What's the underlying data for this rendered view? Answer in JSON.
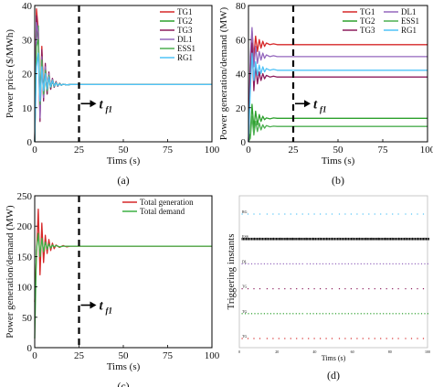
{
  "colors": {
    "TG1": "#d62728",
    "TG2": "#2ca02c",
    "TG3": "#8c1c5c",
    "DL1": "#9467bd",
    "ESS1": "#4caf50",
    "RG1": "#4fc3f7",
    "total_generation": "#d62728",
    "total_demand": "#3cb043",
    "dashed_line": "#000000",
    "events_black": "#111111"
  },
  "chart_data": [
    {
      "id": "a",
      "type": "line",
      "panel_label": "(a)",
      "xlabel": "Tims (s)",
      "ylabel": "Power price ($/MWh)",
      "xlim": [
        0,
        100
      ],
      "ylim": [
        0,
        40
      ],
      "xticks": [
        "0",
        "25",
        "50",
        "75",
        "100"
      ],
      "yticks": [
        "0",
        "10",
        "20",
        "30",
        "40"
      ],
      "marker_x": 25,
      "marker_label": "t",
      "marker_sub": "f1",
      "legend_position": "top-right",
      "series": [
        {
          "name": "TG1",
          "color_key": "TG1",
          "x": [
            0,
            1,
            2,
            3,
            4,
            5,
            6,
            7,
            8,
            9,
            10,
            11,
            12,
            13,
            14,
            15,
            16,
            18,
            20,
            25,
            30,
            40,
            60,
            80,
            100
          ],
          "y": [
            0,
            39,
            33,
            8,
            28,
            14,
            22,
            15,
            20,
            16,
            18.5,
            16.2,
            17.6,
            16.4,
            17.1,
            16.6,
            16.9,
            16.7,
            16.8,
            16.8,
            16.8,
            16.8,
            16.8,
            16.8,
            16.8
          ]
        },
        {
          "name": "TG2",
          "color_key": "TG2",
          "x": [
            0,
            1,
            2,
            3,
            4,
            5,
            6,
            7,
            8,
            9,
            10,
            11,
            12,
            13,
            14,
            15,
            16,
            18,
            20,
            25,
            30,
            40,
            60,
            80,
            100
          ],
          "y": [
            0,
            30,
            34,
            10,
            26,
            13,
            21,
            14,
            19.5,
            15.5,
            18.2,
            16,
            17.5,
            16.3,
            17.1,
            16.6,
            16.9,
            16.7,
            16.8,
            16.8,
            16.8,
            16.8,
            16.8,
            16.8,
            16.8
          ]
        },
        {
          "name": "TG3",
          "color_key": "TG3",
          "x": [
            0,
            1,
            2,
            3,
            4,
            5,
            6,
            7,
            8,
            9,
            10,
            11,
            12,
            13,
            14,
            15,
            16,
            18,
            20,
            25,
            30,
            40,
            60,
            80,
            100
          ],
          "y": [
            0,
            37,
            31,
            6,
            27,
            12,
            23,
            14,
            20.5,
            15.4,
            18.6,
            16,
            17.7,
            16.3,
            17.2,
            16.6,
            16.9,
            16.7,
            16.8,
            16.8,
            16.8,
            16.8,
            16.8,
            16.8,
            16.8
          ]
        },
        {
          "name": "DL1",
          "color_key": "DL1",
          "x": [
            0,
            1,
            2,
            3,
            4,
            5,
            6,
            7,
            8,
            9,
            10,
            11,
            12,
            13,
            14,
            15,
            16,
            18,
            20,
            25,
            30,
            40,
            60,
            80,
            100
          ],
          "y": [
            0,
            35,
            32,
            7,
            25,
            13,
            22,
            15,
            20,
            16,
            18.3,
            16.2,
            17.5,
            16.4,
            17.1,
            16.6,
            16.9,
            16.7,
            16.8,
            16.8,
            16.8,
            16.8,
            16.8,
            16.8,
            16.8
          ]
        },
        {
          "name": "ESS1",
          "color_key": "ESS1",
          "x": [
            0,
            1,
            2,
            3,
            4,
            5,
            6,
            7,
            8,
            9,
            10,
            11,
            12,
            13,
            14,
            15,
            16,
            18,
            20,
            25,
            30,
            40,
            60,
            80,
            100
          ],
          "y": [
            0,
            28,
            30,
            11,
            24,
            14,
            21,
            15,
            19.5,
            16,
            18.1,
            16.3,
            17.4,
            16.5,
            17.1,
            16.6,
            16.9,
            16.7,
            16.8,
            16.8,
            16.8,
            16.8,
            16.8,
            16.8,
            16.8
          ]
        },
        {
          "name": "RG1",
          "color_key": "RG1",
          "x": [
            0,
            1,
            2,
            3,
            4,
            5,
            6,
            7,
            8,
            9,
            10,
            11,
            12,
            13,
            14,
            15,
            16,
            18,
            20,
            25,
            30,
            40,
            60,
            80,
            100
          ],
          "y": [
            0,
            22,
            26,
            12,
            22,
            15,
            20,
            15.5,
            19,
            16.2,
            18,
            16.4,
            17.3,
            16.5,
            17,
            16.6,
            16.9,
            16.7,
            16.8,
            16.8,
            16.8,
            16.8,
            16.8,
            16.8,
            16.8
          ]
        }
      ]
    },
    {
      "id": "b",
      "type": "line",
      "panel_label": "(b)",
      "xlabel": "Tims (s)",
      "ylabel": "Power generation/demand (MW)",
      "xlim": [
        0,
        100
      ],
      "ylim": [
        0,
        80
      ],
      "xticks": [
        "0",
        "25",
        "50",
        "75",
        "100"
      ],
      "yticks": [
        "0",
        "20",
        "40",
        "60",
        "80"
      ],
      "marker_x": 25,
      "marker_label": "t",
      "marker_sub": "f1",
      "legend_position": "top-right",
      "legend_columns": 2,
      "series": [
        {
          "name": "TG1",
          "color_key": "TG1",
          "x": [
            0,
            1,
            2,
            3,
            4,
            5,
            6,
            7,
            8,
            9,
            10,
            12,
            14,
            16,
            20,
            25,
            30,
            40,
            60,
            80,
            100
          ],
          "y": [
            0,
            45,
            65,
            50,
            62,
            53,
            60,
            55,
            59,
            56,
            58,
            57,
            57.5,
            57,
            57,
            57,
            57,
            57,
            57,
            57,
            57
          ]
        },
        {
          "name": "DL1",
          "color_key": "DL1",
          "x": [
            0,
            1,
            2,
            3,
            4,
            5,
            6,
            7,
            8,
            9,
            10,
            12,
            14,
            16,
            20,
            25,
            30,
            40,
            60,
            80,
            100
          ],
          "y": [
            0,
            50,
            67,
            44,
            56,
            46,
            53,
            48,
            52,
            49,
            51,
            50,
            50.5,
            50,
            50,
            50,
            50,
            50,
            50,
            50,
            50
          ]
        },
        {
          "name": "TG2",
          "color_key": "TG2",
          "x": [
            0,
            1,
            2,
            3,
            4,
            5,
            6,
            7,
            8,
            9,
            10,
            12,
            14,
            16,
            20,
            25,
            30,
            40,
            60,
            80,
            100
          ],
          "y": [
            0,
            5,
            22,
            8,
            18,
            10,
            16,
            12,
            15,
            13,
            14,
            13.5,
            14,
            13.8,
            13.8,
            13.8,
            13.8,
            13.8,
            13.8,
            13.8,
            13.8
          ]
        },
        {
          "name": "ESS1",
          "color_key": "ESS1",
          "x": [
            0,
            1,
            2,
            3,
            4,
            5,
            6,
            7,
            8,
            9,
            10,
            12,
            14,
            16,
            20,
            25,
            30,
            40,
            60,
            80,
            100
          ],
          "y": [
            0,
            2,
            15,
            4,
            12,
            6,
            11,
            7,
            10,
            8,
            9.5,
            8.8,
            9.2,
            9,
            9,
            9,
            9,
            9,
            9,
            9,
            9
          ]
        },
        {
          "name": "TG3",
          "color_key": "TG3",
          "x": [
            0,
            1,
            2,
            3,
            4,
            5,
            6,
            7,
            8,
            9,
            10,
            12,
            14,
            16,
            20,
            25,
            30,
            40,
            60,
            80,
            100
          ],
          "y": [
            0,
            40,
            58,
            30,
            45,
            34,
            41,
            36,
            40,
            37,
            39,
            38,
            38.5,
            38,
            38,
            38,
            38,
            38,
            38,
            38,
            38
          ]
        },
        {
          "name": "RG1",
          "color_key": "RG1",
          "x": [
            0,
            1,
            2,
            3,
            4,
            5,
            6,
            7,
            8,
            9,
            10,
            12,
            14,
            16,
            20,
            25,
            30,
            40,
            60,
            80,
            100
          ],
          "y": [
            0,
            30,
            52,
            36,
            47,
            39,
            45,
            40,
            44,
            41,
            43,
            42,
            42.5,
            42,
            42,
            42,
            42,
            42,
            42,
            42,
            42
          ]
        }
      ]
    },
    {
      "id": "c",
      "type": "line",
      "panel_label": "(c)",
      "xlabel": "Tims (s)",
      "ylabel": "Power generation/demand (MW)",
      "xlim": [
        0,
        100
      ],
      "ylim": [
        0,
        250
      ],
      "xticks": [
        "0",
        "25",
        "50",
        "75",
        "100"
      ],
      "yticks": [
        "0",
        "50",
        "100",
        "150",
        "200",
        "250"
      ],
      "marker_x": 25,
      "marker_label": "t",
      "marker_sub": "f1",
      "legend_position": "top-right",
      "series": [
        {
          "name": "Total generation",
          "color_key": "total_generation",
          "x": [
            0,
            1,
            2,
            3,
            4,
            5,
            6,
            7,
            8,
            9,
            10,
            11,
            12,
            14,
            16,
            18,
            20,
            25,
            30,
            40,
            60,
            80,
            100
          ],
          "y": [
            75,
            150,
            228,
            120,
            205,
            140,
            185,
            155,
            178,
            160,
            172,
            163,
            169,
            165,
            168,
            166,
            167,
            167,
            167,
            167,
            167,
            167,
            167
          ]
        },
        {
          "name": "Total demand",
          "color_key": "total_demand",
          "x": [
            0,
            1,
            2,
            3,
            4,
            5,
            6,
            7,
            8,
            9,
            10,
            11,
            12,
            14,
            16,
            18,
            20,
            25,
            30,
            40,
            60,
            80,
            100
          ],
          "y": [
            15,
            160,
            188,
            150,
            180,
            158,
            174,
            162,
            171,
            164,
            169,
            166,
            168,
            166,
            167,
            167,
            167,
            167,
            167,
            167,
            167,
            167,
            167
          ]
        }
      ]
    },
    {
      "id": "d",
      "type": "scatter",
      "panel_label": "(d)",
      "xlabel": "Tims (s)",
      "ylabel": "Triggering instants",
      "xlim": [
        0,
        100
      ],
      "xticks": [
        "0",
        "20",
        "40",
        "60",
        "80",
        "100"
      ],
      "rows": [
        {
          "label": "RG",
          "color_key": "RG1",
          "density": "sparse"
        },
        {
          "label": "ESS",
          "color_key": "events_black",
          "density": "dense"
        },
        {
          "label": "DL",
          "color_key": "DL1",
          "density": "medium"
        },
        {
          "label": "TG",
          "color_key": "TG3",
          "density": "sparse"
        },
        {
          "label": "TG",
          "color_key": "TG2",
          "density": "medium"
        },
        {
          "label": "TG",
          "color_key": "TG1",
          "density": "sparse"
        }
      ]
    }
  ]
}
